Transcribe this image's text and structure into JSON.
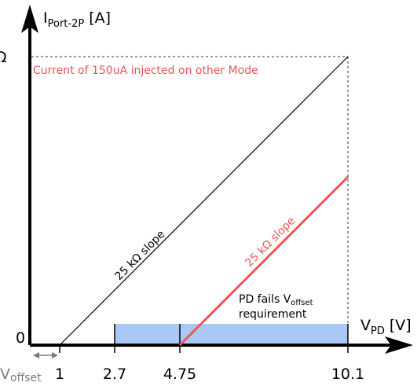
{
  "y_axis": {
    "main": "I",
    "sub": "Port-2P",
    "unit": " [A]"
  },
  "x_axis": {
    "main": "V",
    "sub": "PD",
    "unit": " [V]"
  },
  "y_top_label": "Ω",
  "origin_label": "0",
  "voffset_label": {
    "main": "V",
    "sub": "offset"
  },
  "x_ticks": [
    "1",
    "2.7",
    "4.75",
    "10.1"
  ],
  "red_note": "Current of 150uA injected on other Mode",
  "slope_black": "25 kΩ slope",
  "slope_red": "25 kΩ slope",
  "fail_note": {
    "line1_main": "PD fails V",
    "line1_sub": "offset",
    "line2": "requirement"
  },
  "colors": {
    "black_line": "#000000",
    "red_line": "#ee5555",
    "band": "#a9c8f5",
    "grey": "#7a7a7a"
  }
}
